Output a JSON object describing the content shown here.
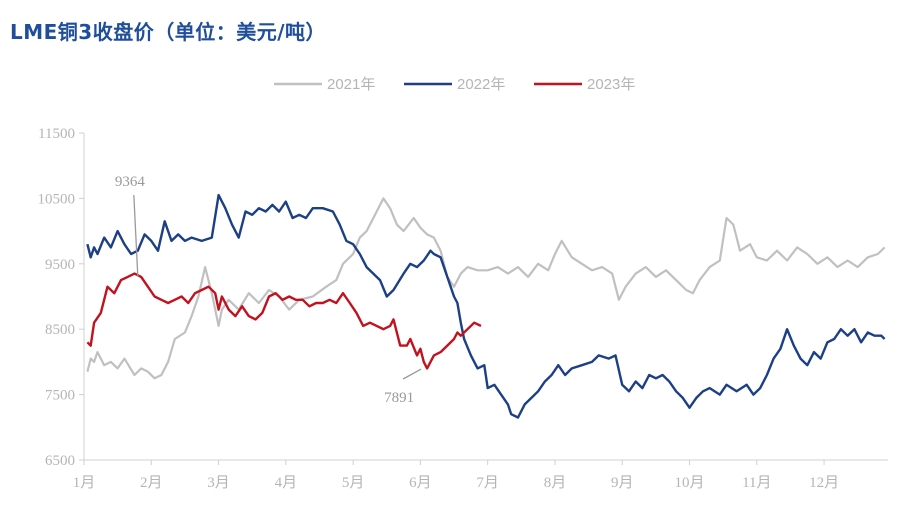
{
  "title": "LME铜3收盘价（单位：美元/吨）",
  "colors": {
    "2021": "#c0c0c0",
    "2022": "#1c3f86",
    "2023": "#c1121f",
    "axis": "#d0d0d0",
    "text": "#b5b5b5"
  },
  "chart_data": {
    "type": "line",
    "title": "LME铜3收盘价（单位：美元/吨）",
    "xlabel": "",
    "ylabel": "",
    "ylim": [
      6500,
      11500
    ],
    "yticks": [
      6500,
      7500,
      8500,
      9500,
      10500,
      11500
    ],
    "xlim": [
      1,
      12.95
    ],
    "xticks": [
      1,
      2,
      3,
      4,
      5,
      6,
      7,
      8,
      9,
      10,
      11,
      12
    ],
    "xtick_labels": [
      "1月",
      "2月",
      "3月",
      "4月",
      "5月",
      "6月",
      "7月",
      "8月",
      "9月",
      "10月",
      "11月",
      "12月"
    ],
    "legend": {
      "position": "top-center",
      "entries": [
        "2021年",
        "2022年",
        "2023年"
      ]
    },
    "series": [
      {
        "name": "2021年",
        "color": "#c0c0c0",
        "points": [
          [
            1.05,
            7850
          ],
          [
            1.1,
            8050
          ],
          [
            1.15,
            8000
          ],
          [
            1.2,
            8150
          ],
          [
            1.3,
            7950
          ],
          [
            1.4,
            8000
          ],
          [
            1.5,
            7900
          ],
          [
            1.6,
            8050
          ],
          [
            1.75,
            7800
          ],
          [
            1.85,
            7900
          ],
          [
            1.95,
            7850
          ],
          [
            2.05,
            7750
          ],
          [
            2.15,
            7800
          ],
          [
            2.25,
            8000
          ],
          [
            2.35,
            8350
          ],
          [
            2.5,
            8450
          ],
          [
            2.6,
            8700
          ],
          [
            2.7,
            9000
          ],
          [
            2.8,
            9450
          ],
          [
            2.9,
            9050
          ],
          [
            3.0,
            8550
          ],
          [
            3.05,
            8800
          ],
          [
            3.15,
            8950
          ],
          [
            3.3,
            8800
          ],
          [
            3.45,
            9050
          ],
          [
            3.6,
            8900
          ],
          [
            3.75,
            9100
          ],
          [
            3.9,
            9000
          ],
          [
            4.05,
            8800
          ],
          [
            4.2,
            8950
          ],
          [
            4.4,
            9000
          ],
          [
            4.6,
            9150
          ],
          [
            4.75,
            9250
          ],
          [
            4.85,
            9500
          ],
          [
            5.0,
            9650
          ],
          [
            5.1,
            9900
          ],
          [
            5.2,
            10000
          ],
          [
            5.35,
            10300
          ],
          [
            5.45,
            10500
          ],
          [
            5.55,
            10350
          ],
          [
            5.65,
            10100
          ],
          [
            5.75,
            10000
          ],
          [
            5.9,
            10200
          ],
          [
            6.0,
            10050
          ],
          [
            6.1,
            9950
          ],
          [
            6.2,
            9900
          ],
          [
            6.3,
            9700
          ],
          [
            6.4,
            9300
          ],
          [
            6.5,
            9150
          ],
          [
            6.6,
            9350
          ],
          [
            6.7,
            9450
          ],
          [
            6.85,
            9400
          ],
          [
            7.0,
            9400
          ],
          [
            7.15,
            9450
          ],
          [
            7.3,
            9350
          ],
          [
            7.45,
            9450
          ],
          [
            7.6,
            9300
          ],
          [
            7.75,
            9500
          ],
          [
            7.9,
            9400
          ],
          [
            8.0,
            9650
          ],
          [
            8.1,
            9850
          ],
          [
            8.25,
            9600
          ],
          [
            8.4,
            9500
          ],
          [
            8.55,
            9400
          ],
          [
            8.7,
            9450
          ],
          [
            8.85,
            9350
          ],
          [
            8.95,
            8950
          ],
          [
            9.05,
            9150
          ],
          [
            9.2,
            9350
          ],
          [
            9.35,
            9450
          ],
          [
            9.5,
            9300
          ],
          [
            9.65,
            9400
          ],
          [
            9.8,
            9250
          ],
          [
            9.95,
            9100
          ],
          [
            10.05,
            9050
          ],
          [
            10.15,
            9250
          ],
          [
            10.3,
            9450
          ],
          [
            10.45,
            9550
          ],
          [
            10.55,
            10200
          ],
          [
            10.65,
            10100
          ],
          [
            10.75,
            9700
          ],
          [
            10.9,
            9800
          ],
          [
            11.0,
            9600
          ],
          [
            11.15,
            9550
          ],
          [
            11.3,
            9700
          ],
          [
            11.45,
            9550
          ],
          [
            11.6,
            9750
          ],
          [
            11.75,
            9650
          ],
          [
            11.9,
            9500
          ],
          [
            12.05,
            9600
          ],
          [
            12.2,
            9450
          ],
          [
            12.35,
            9550
          ],
          [
            12.5,
            9450
          ],
          [
            12.65,
            9600
          ],
          [
            12.8,
            9650
          ],
          [
            12.9,
            9750
          ]
        ]
      },
      {
        "name": "2022年",
        "color": "#1c3f86",
        "points": [
          [
            1.05,
            9800
          ],
          [
            1.1,
            9600
          ],
          [
            1.15,
            9750
          ],
          [
            1.2,
            9650
          ],
          [
            1.3,
            9900
          ],
          [
            1.4,
            9750
          ],
          [
            1.5,
            10000
          ],
          [
            1.6,
            9800
          ],
          [
            1.7,
            9650
          ],
          [
            1.8,
            9700
          ],
          [
            1.9,
            9950
          ],
          [
            2.0,
            9850
          ],
          [
            2.1,
            9700
          ],
          [
            2.2,
            10150
          ],
          [
            2.3,
            9850
          ],
          [
            2.4,
            9950
          ],
          [
            2.5,
            9850
          ],
          [
            2.6,
            9900
          ],
          [
            2.75,
            9850
          ],
          [
            2.9,
            9900
          ],
          [
            3.0,
            10550
          ],
          [
            3.1,
            10350
          ],
          [
            3.2,
            10100
          ],
          [
            3.3,
            9900
          ],
          [
            3.4,
            10300
          ],
          [
            3.5,
            10250
          ],
          [
            3.6,
            10350
          ],
          [
            3.7,
            10300
          ],
          [
            3.8,
            10400
          ],
          [
            3.9,
            10300
          ],
          [
            4.0,
            10450
          ],
          [
            4.1,
            10200
          ],
          [
            4.2,
            10250
          ],
          [
            4.3,
            10200
          ],
          [
            4.4,
            10350
          ],
          [
            4.55,
            10350
          ],
          [
            4.7,
            10300
          ],
          [
            4.8,
            10100
          ],
          [
            4.9,
            9850
          ],
          [
            5.0,
            9800
          ],
          [
            5.1,
            9650
          ],
          [
            5.2,
            9450
          ],
          [
            5.3,
            9350
          ],
          [
            5.4,
            9250
          ],
          [
            5.5,
            9000
          ],
          [
            5.6,
            9100
          ],
          [
            5.75,
            9350
          ],
          [
            5.85,
            9500
          ],
          [
            5.95,
            9450
          ],
          [
            6.05,
            9550
          ],
          [
            6.15,
            9700
          ],
          [
            6.2,
            9650
          ],
          [
            6.3,
            9600
          ],
          [
            6.4,
            9300
          ],
          [
            6.5,
            9000
          ],
          [
            6.55,
            8900
          ],
          [
            6.6,
            8600
          ],
          [
            6.65,
            8350
          ],
          [
            6.75,
            8100
          ],
          [
            6.85,
            7900
          ],
          [
            6.95,
            7950
          ],
          [
            7.0,
            7600
          ],
          [
            7.1,
            7650
          ],
          [
            7.2,
            7500
          ],
          [
            7.3,
            7350
          ],
          [
            7.35,
            7200
          ],
          [
            7.45,
            7150
          ],
          [
            7.55,
            7350
          ],
          [
            7.65,
            7450
          ],
          [
            7.75,
            7550
          ],
          [
            7.85,
            7700
          ],
          [
            7.95,
            7800
          ],
          [
            8.05,
            7950
          ],
          [
            8.15,
            7800
          ],
          [
            8.25,
            7900
          ],
          [
            8.4,
            7950
          ],
          [
            8.55,
            8000
          ],
          [
            8.65,
            8100
          ],
          [
            8.8,
            8050
          ],
          [
            8.9,
            8100
          ],
          [
            9.0,
            7650
          ],
          [
            9.1,
            7550
          ],
          [
            9.2,
            7700
          ],
          [
            9.3,
            7600
          ],
          [
            9.4,
            7800
          ],
          [
            9.5,
            7750
          ],
          [
            9.6,
            7800
          ],
          [
            9.7,
            7700
          ],
          [
            9.8,
            7550
          ],
          [
            9.9,
            7450
          ],
          [
            10.0,
            7300
          ],
          [
            10.1,
            7450
          ],
          [
            10.2,
            7550
          ],
          [
            10.3,
            7600
          ],
          [
            10.45,
            7500
          ],
          [
            10.55,
            7650
          ],
          [
            10.7,
            7550
          ],
          [
            10.85,
            7650
          ],
          [
            10.95,
            7500
          ],
          [
            11.05,
            7600
          ],
          [
            11.15,
            7800
          ],
          [
            11.25,
            8050
          ],
          [
            11.35,
            8200
          ],
          [
            11.45,
            8500
          ],
          [
            11.55,
            8250
          ],
          [
            11.65,
            8050
          ],
          [
            11.75,
            7950
          ],
          [
            11.85,
            8150
          ],
          [
            11.95,
            8050
          ],
          [
            12.05,
            8300
          ],
          [
            12.15,
            8350
          ],
          [
            12.25,
            8500
          ],
          [
            12.35,
            8400
          ],
          [
            12.45,
            8500
          ],
          [
            12.55,
            8300
          ],
          [
            12.65,
            8450
          ],
          [
            12.75,
            8400
          ],
          [
            12.85,
            8400
          ],
          [
            12.9,
            8350
          ]
        ]
      },
      {
        "name": "2023年",
        "color": "#c1121f",
        "points": [
          [
            1.05,
            8300
          ],
          [
            1.1,
            8250
          ],
          [
            1.15,
            8600
          ],
          [
            1.25,
            8750
          ],
          [
            1.35,
            9150
          ],
          [
            1.45,
            9050
          ],
          [
            1.55,
            9250
          ],
          [
            1.65,
            9300
          ],
          [
            1.75,
            9350
          ],
          [
            1.85,
            9300
          ],
          [
            1.95,
            9150
          ],
          [
            2.05,
            9000
          ],
          [
            2.15,
            8950
          ],
          [
            2.25,
            8900
          ],
          [
            2.35,
            8950
          ],
          [
            2.45,
            9000
          ],
          [
            2.55,
            8900
          ],
          [
            2.65,
            9050
          ],
          [
            2.75,
            9100
          ],
          [
            2.85,
            9150
          ],
          [
            2.95,
            9050
          ],
          [
            3.0,
            8800
          ],
          [
            3.05,
            9000
          ],
          [
            3.15,
            8800
          ],
          [
            3.25,
            8700
          ],
          [
            3.35,
            8850
          ],
          [
            3.45,
            8700
          ],
          [
            3.55,
            8650
          ],
          [
            3.65,
            8750
          ],
          [
            3.75,
            9000
          ],
          [
            3.85,
            9050
          ],
          [
            3.95,
            8950
          ],
          [
            4.05,
            9000
          ],
          [
            4.15,
            8950
          ],
          [
            4.25,
            8950
          ],
          [
            4.35,
            8850
          ],
          [
            4.45,
            8900
          ],
          [
            4.55,
            8900
          ],
          [
            4.65,
            8950
          ],
          [
            4.75,
            8900
          ],
          [
            4.85,
            9050
          ],
          [
            4.95,
            8900
          ],
          [
            5.05,
            8750
          ],
          [
            5.15,
            8550
          ],
          [
            5.25,
            8600
          ],
          [
            5.35,
            8550
          ],
          [
            5.45,
            8500
          ],
          [
            5.55,
            8550
          ],
          [
            5.6,
            8650
          ],
          [
            5.7,
            8250
          ],
          [
            5.8,
            8250
          ],
          [
            5.85,
            8350
          ],
          [
            5.95,
            8100
          ],
          [
            6.0,
            8200
          ],
          [
            6.05,
            8000
          ],
          [
            6.1,
            7900
          ],
          [
            6.2,
            8100
          ],
          [
            6.3,
            8150
          ],
          [
            6.4,
            8250
          ],
          [
            6.5,
            8350
          ],
          [
            6.55,
            8450
          ],
          [
            6.6,
            8400
          ],
          [
            6.7,
            8500
          ],
          [
            6.8,
            8600
          ],
          [
            6.9,
            8550
          ]
        ]
      }
    ],
    "annotations": [
      {
        "text": "9364",
        "x": 1.8,
        "y": 9364
      },
      {
        "text": "7891",
        "x": 6.1,
        "y": 7891
      }
    ]
  }
}
